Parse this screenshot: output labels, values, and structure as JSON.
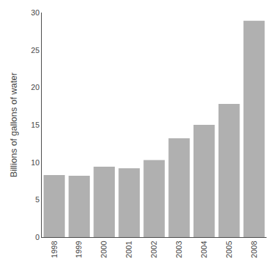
{
  "chart_data": {
    "type": "bar",
    "categories": [
      "1998",
      "1999",
      "2000",
      "2001",
      "2002",
      "2003",
      "2004",
      "2005",
      "2008"
    ],
    "values": [
      8.3,
      8.2,
      9.4,
      9.2,
      10.3,
      13.2,
      15.0,
      17.8,
      28.9
    ],
    "color": "#b0b0b0",
    "ylabel": "Billions of gallons of water",
    "ylim": [
      0,
      30
    ],
    "yticks": [
      0,
      5,
      10,
      15,
      20,
      25,
      30
    ],
    "grid": false
  }
}
